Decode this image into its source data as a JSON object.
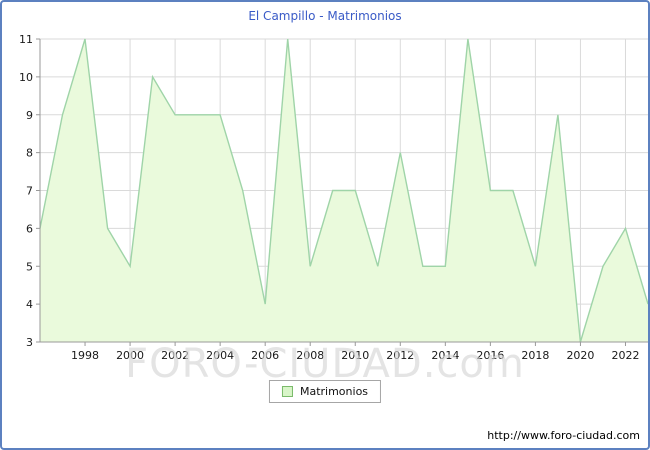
{
  "title": "El Campillo - Matrimonios",
  "watermark": "FORO-CIUDAD.com",
  "footer_url": "http://www.foro-ciudad.com",
  "legend": {
    "label": "Matrimonios"
  },
  "colors": {
    "frame_border": "#5c81c0",
    "title": "#3a5bc7",
    "axis": "#999999",
    "grid": "#dadada",
    "tick_text": "#1a1a1a",
    "line": "#9fd4a8",
    "fill": "#eafadc",
    "legend_swatch_fill": "#d8f5c8",
    "legend_swatch_border": "#7aba6a",
    "watermark_text": "#d6d6d6"
  },
  "chart_data": {
    "type": "area",
    "title": "El Campillo - Matrimonios",
    "xlabel": "",
    "ylabel": "",
    "x": [
      1996,
      1997,
      1998,
      1999,
      2000,
      2001,
      2002,
      2003,
      2004,
      2005,
      2006,
      2007,
      2008,
      2009,
      2010,
      2011,
      2012,
      2013,
      2014,
      2015,
      2016,
      2017,
      2018,
      2019,
      2020,
      2021,
      2022,
      2023
    ],
    "series": [
      {
        "name": "Matrimonios",
        "values": [
          6,
          9,
          11,
          6,
          5,
          10,
          9,
          9,
          9,
          7,
          4,
          11,
          5,
          7,
          7,
          5,
          8,
          5,
          5,
          11,
          7,
          7,
          5,
          9,
          3,
          5,
          6,
          4
        ]
      }
    ],
    "ylim": [
      3,
      11
    ],
    "yticks": [
      3,
      4,
      5,
      6,
      7,
      8,
      9,
      10,
      11
    ],
    "xticks": [
      1998,
      2000,
      2002,
      2004,
      2006,
      2008,
      2010,
      2012,
      2014,
      2016,
      2018,
      2020,
      2022
    ],
    "grid": true,
    "legend_position": "bottom-center"
  }
}
